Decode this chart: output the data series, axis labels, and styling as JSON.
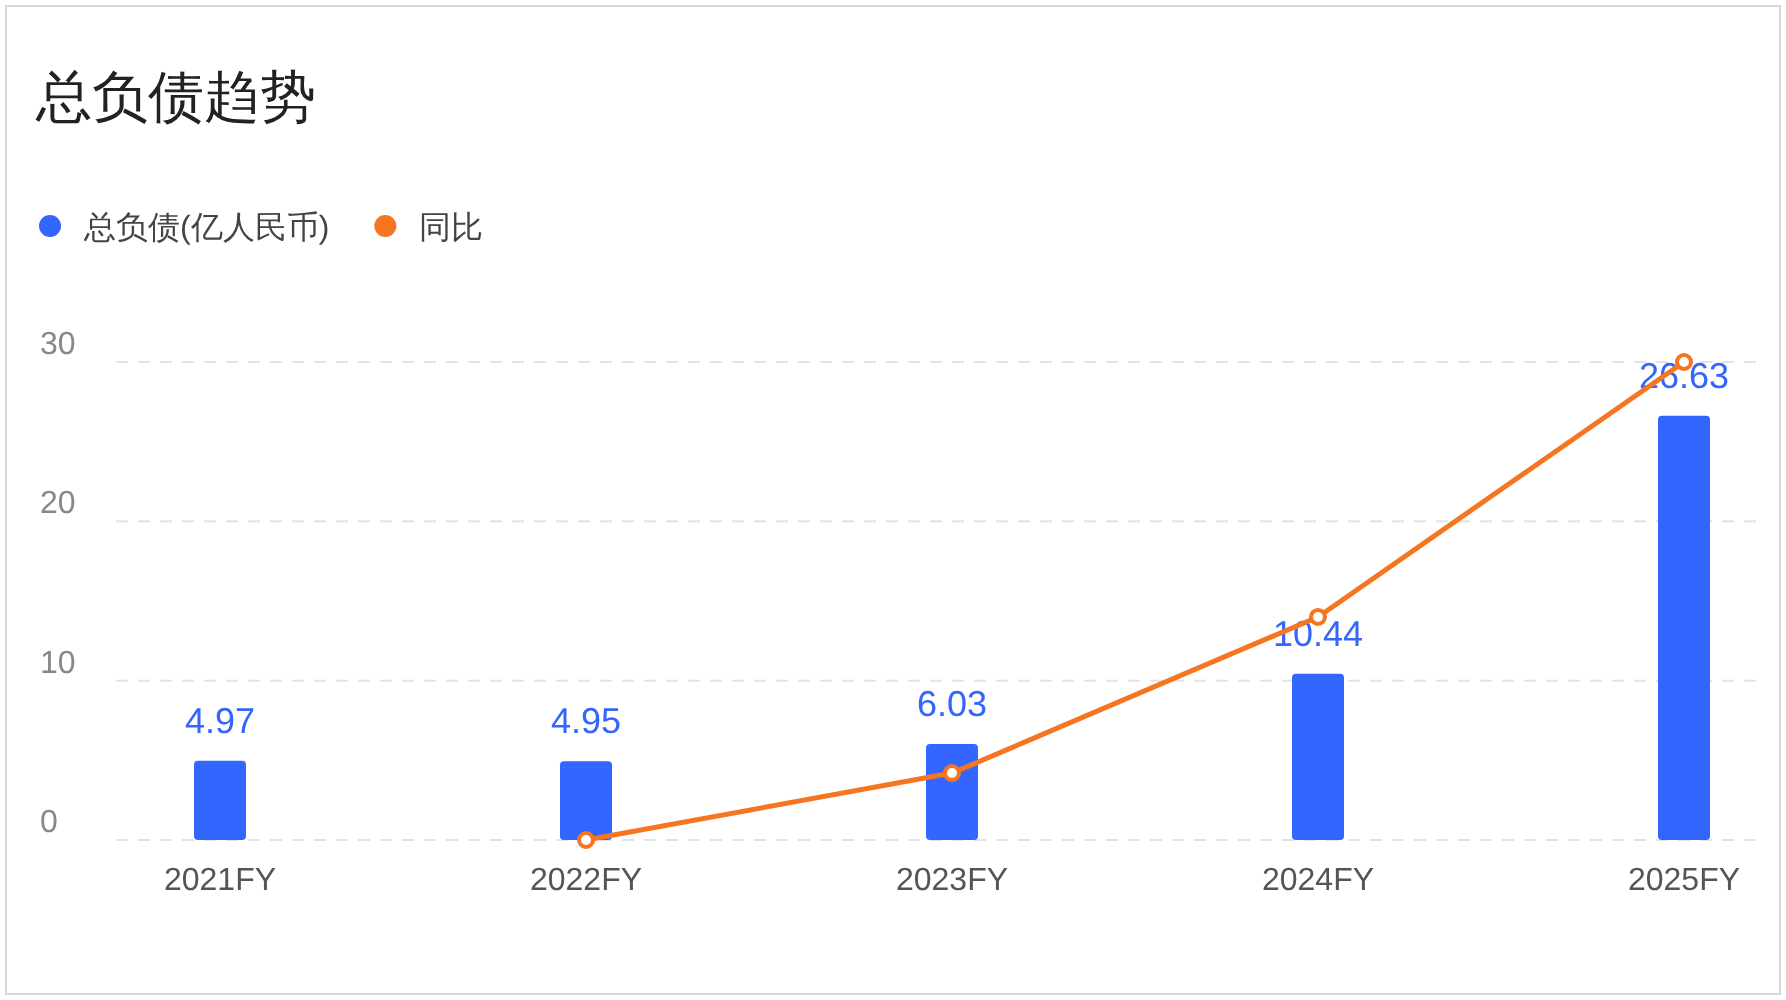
{
  "chart_data": {
    "type": "bar",
    "title": "总负债趋势",
    "categories": [
      "2021FY",
      "2022FY",
      "2023FY",
      "2024FY",
      "2025FY"
    ],
    "series": [
      {
        "name": "总负债(亿人民币)",
        "color": "#3366ff",
        "values": [
          4.97,
          4.95,
          6.03,
          10.44,
          26.63
        ],
        "value_labels": [
          "4.97",
          "4.95",
          "6.03",
          "10.44",
          "26.63"
        ]
      },
      {
        "name": "同比",
        "type": "line",
        "color": "#f57520",
        "values": [
          null,
          0,
          4.2,
          14,
          30
        ],
        "marker": "circle",
        "line_style": "solid"
      }
    ],
    "ylim": [
      0,
      30
    ],
    "yticks": [
      0,
      10,
      20,
      30
    ],
    "grid": "y",
    "legend": "top left"
  }
}
